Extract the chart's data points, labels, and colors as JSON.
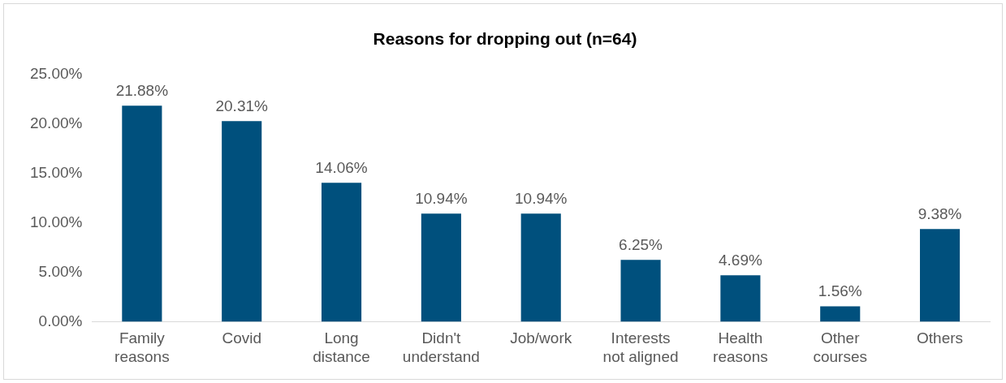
{
  "chart_data": {
    "type": "bar",
    "title": "Reasons for dropping out (n=64)",
    "categories": [
      "Family reasons",
      "Covid",
      "Long distance",
      "Didn't understand",
      "Job/work",
      "Interests not aligned",
      "Health reasons",
      "Other courses",
      "Others"
    ],
    "values": [
      21.88,
      20.31,
      14.06,
      10.94,
      10.94,
      6.25,
      4.69,
      1.56,
      9.38
    ],
    "color": "#00507d",
    "value_labels": [
      "21.88%",
      "20.31%",
      "14.06%",
      "10.94%",
      "10.94%",
      "6.25%",
      "4.69%",
      "1.56%",
      "9.38%"
    ],
    "ylim": [
      0,
      25
    ],
    "yticks": [
      {
        "value": 0,
        "label": "0.00%"
      },
      {
        "value": 5,
        "label": "5.00%"
      },
      {
        "value": 10,
        "label": "10.00%"
      },
      {
        "value": 15,
        "label": "15.00%"
      },
      {
        "value": 20,
        "label": "20.00%"
      },
      {
        "value": 25,
        "label": "25.00%"
      }
    ],
    "grid": false,
    "legend": false
  }
}
